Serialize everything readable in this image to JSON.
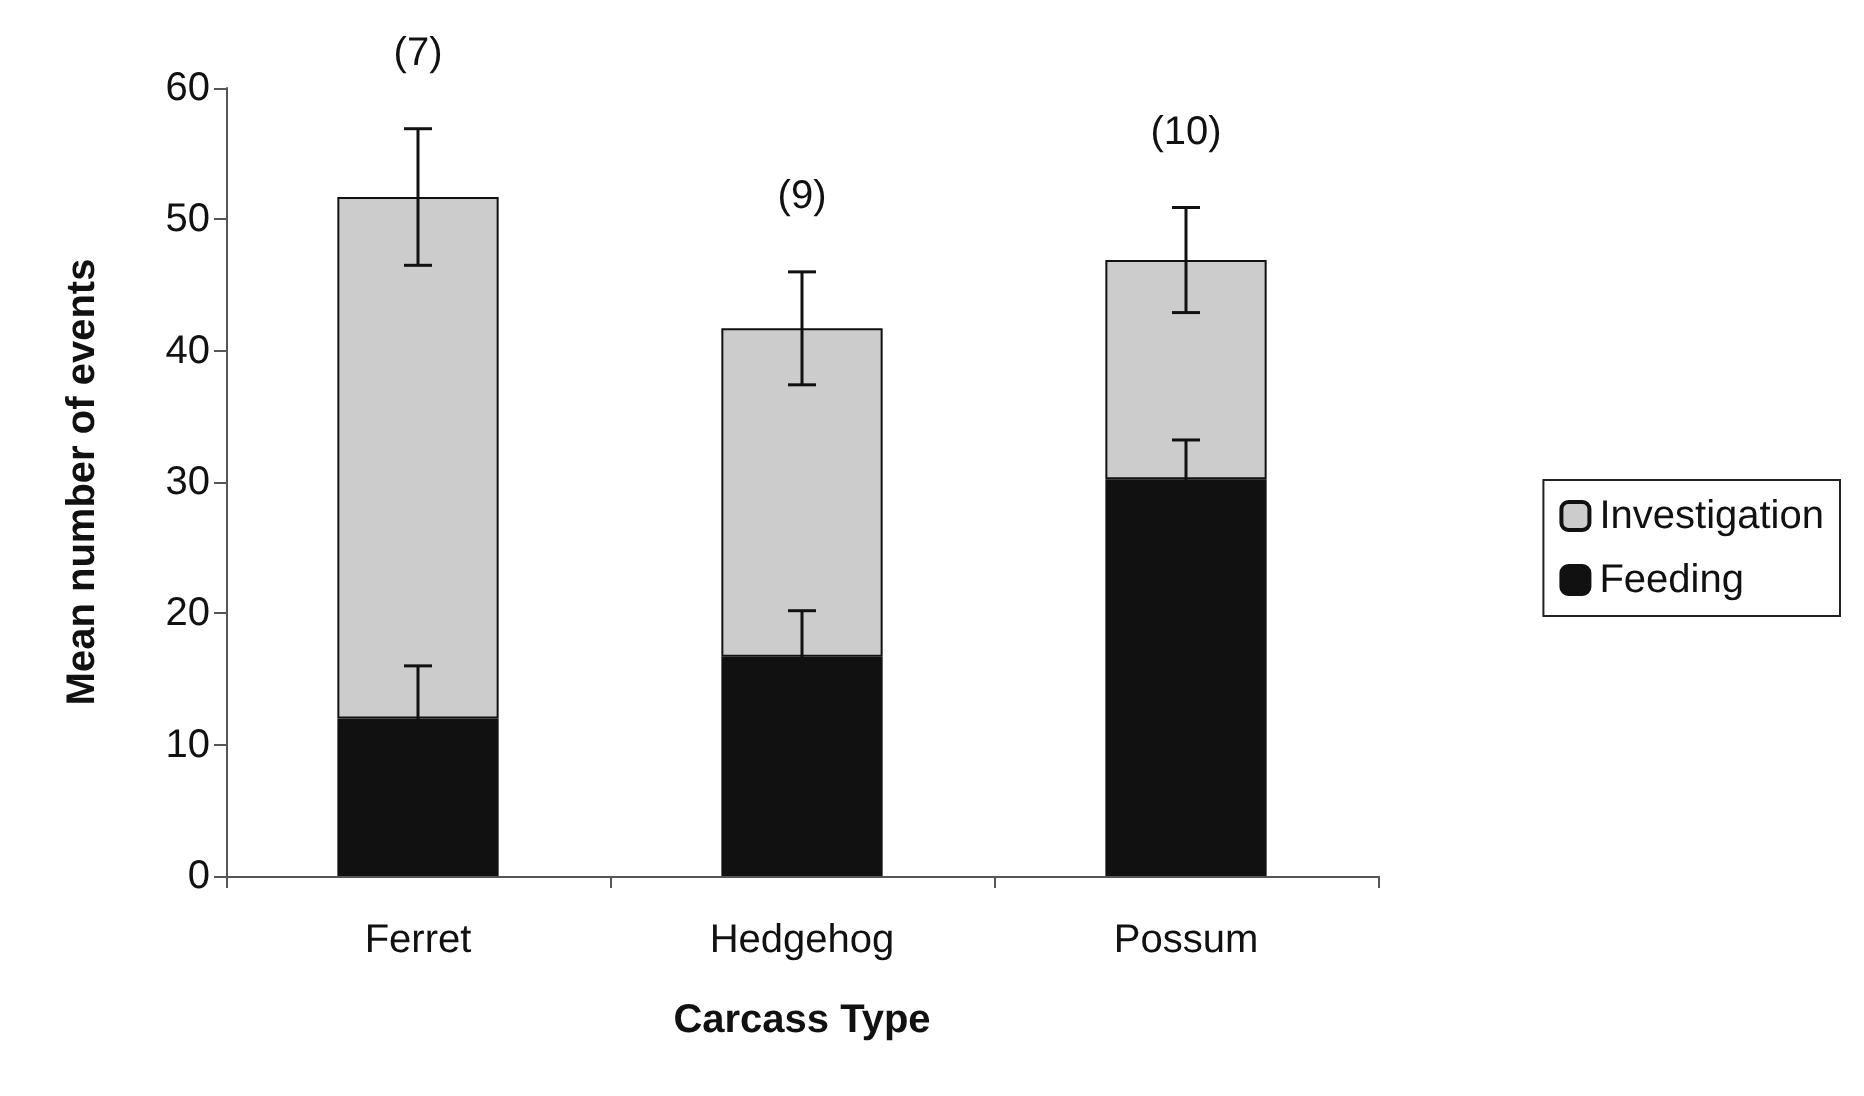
{
  "chart_data": {
    "type": "bar",
    "stacked": true,
    "xlabel": "Carcass Type",
    "ylabel": "Mean number of events",
    "categories": [
      "Ferret",
      "Hedgehog",
      "Possum"
    ],
    "series": [
      {
        "name": "Feeding",
        "color": "#111111",
        "values": [
          12,
          16.7,
          30.2
        ],
        "errors": [
          4,
          3.5,
          3
        ]
      },
      {
        "name": "Investigation",
        "color": "#cccccc",
        "values": [
          39.7,
          25,
          16.7
        ],
        "errors": [
          5.2,
          4.3,
          4
        ]
      }
    ],
    "ylim": [
      0,
      60
    ],
    "yticks": [
      0,
      10,
      20,
      30,
      40,
      50,
      60
    ],
    "grid": false,
    "legend": "right",
    "annotations": [
      "(7)",
      "(9)",
      "(10)"
    ]
  }
}
